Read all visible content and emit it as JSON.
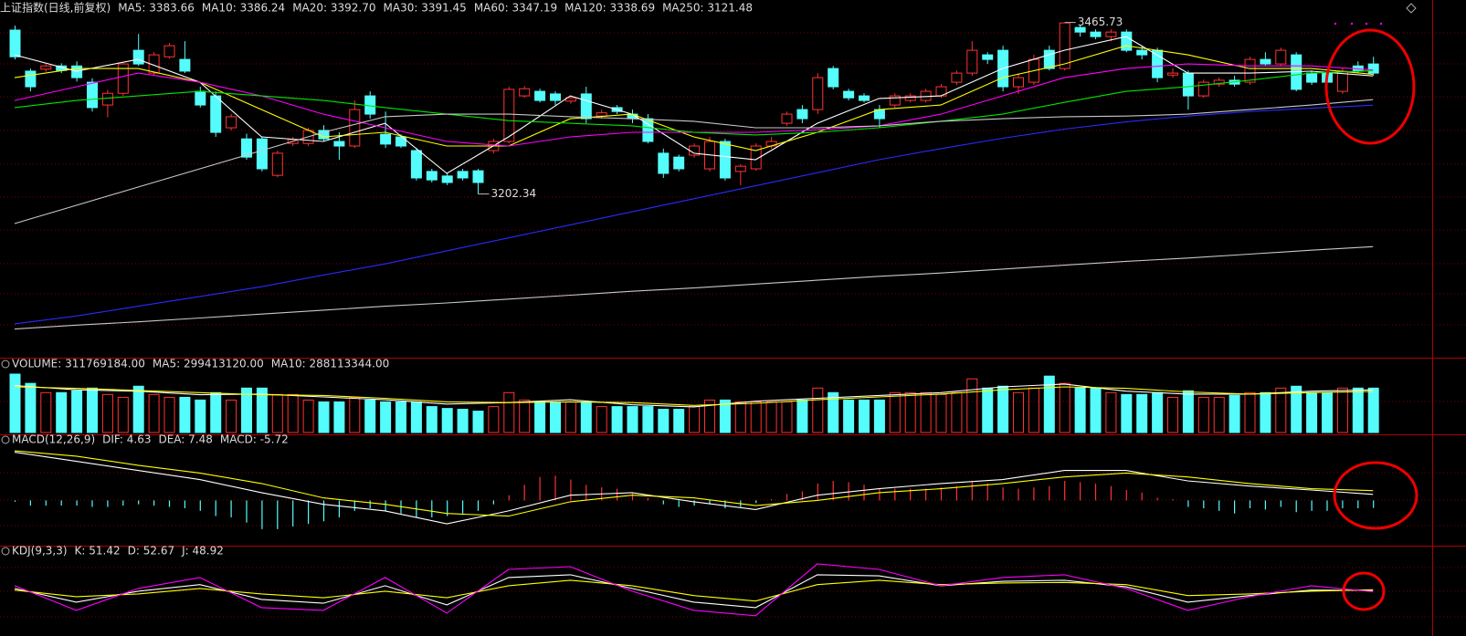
{
  "chart_data": [
    {
      "type": "candlestick",
      "title": "上证指数(日线,前复权)",
      "up_color": "#ff3232",
      "down_color": "#54fcfc",
      "ylim": [
        2951,
        3475
      ],
      "open": [
        3454,
        3391,
        3394,
        3399,
        3399,
        3374,
        3339,
        3357,
        3423,
        3388,
        3413,
        3409,
        3360,
        3353,
        3304,
        3287,
        3287,
        3231,
        3280,
        3280,
        3300,
        3283,
        3276,
        3353,
        3294,
        3290,
        3269,
        3237,
        3230,
        3237,
        3238,
        3269,
        3283,
        3353,
        3360,
        3356,
        3345,
        3356,
        3322,
        3335,
        3325,
        3318,
        3265,
        3259,
        3262,
        3241,
        3283,
        3237,
        3241,
        3276,
        3311,
        3332,
        3332,
        3395,
        3360,
        3353,
        3332,
        3339,
        3346,
        3346,
        3353,
        3374,
        3388,
        3416,
        3423,
        3367,
        3374,
        3423,
        3395,
        3458,
        3451,
        3444,
        3451,
        3423,
        3423,
        3385,
        3388,
        3353,
        3371,
        3377,
        3374,
        3409,
        3402,
        3416,
        3388,
        3388,
        3360,
        3399,
        3402
      ],
      "close": [
        3413,
        3367,
        3399,
        3392,
        3381,
        3335,
        3357,
        3402,
        3402,
        3416,
        3430,
        3391,
        3339,
        3297,
        3321,
        3259,
        3241,
        3265,
        3286,
        3300,
        3287,
        3276,
        3332,
        3325,
        3279,
        3276,
        3227,
        3224,
        3220,
        3227,
        3220,
        3283,
        3363,
        3364,
        3346,
        3346,
        3350,
        3318,
        3327,
        3329,
        3318,
        3283,
        3234,
        3241,
        3276,
        3283,
        3227,
        3245,
        3276,
        3283,
        3325,
        3318,
        3381,
        3367,
        3350,
        3346,
        3318,
        3353,
        3353,
        3360,
        3367,
        3388,
        3423,
        3409,
        3367,
        3381,
        3409,
        3395,
        3465,
        3451,
        3444,
        3451,
        3423,
        3416,
        3381,
        3388,
        3353,
        3374,
        3377,
        3371,
        3409,
        3402,
        3423,
        3363,
        3374,
        3374,
        3391,
        3391,
        3388
      ],
      "high": [
        3461,
        3395,
        3402,
        3403,
        3406,
        3380,
        3362,
        3405,
        3448,
        3420,
        3434,
        3437,
        3367,
        3360,
        3325,
        3295,
        3291,
        3269,
        3290,
        3304,
        3308,
        3297,
        3346,
        3360,
        3329,
        3294,
        3273,
        3241,
        3234,
        3241,
        3241,
        3287,
        3367,
        3368,
        3364,
        3360,
        3353,
        3367,
        3332,
        3339,
        3332,
        3325,
        3272,
        3263,
        3280,
        3290,
        3287,
        3248,
        3280,
        3290,
        3329,
        3339,
        3388,
        3399,
        3364,
        3357,
        3339,
        3357,
        3357,
        3364,
        3371,
        3392,
        3437,
        3420,
        3430,
        3388,
        3416,
        3430,
        3465.73,
        3462,
        3455,
        3455,
        3455,
        3430,
        3427,
        3395,
        3392,
        3378,
        3381,
        3384,
        3413,
        3420,
        3427,
        3420,
        3392,
        3395,
        3395,
        3406,
        3413
      ],
      "low": [
        3409,
        3360,
        3390,
        3388,
        3375,
        3329,
        3320,
        3353,
        3399,
        3385,
        3410,
        3388,
        3335,
        3290,
        3300,
        3255,
        3237,
        3228,
        3276,
        3276,
        3283,
        3255,
        3273,
        3318,
        3273,
        3273,
        3223,
        3220,
        3216,
        3223,
        3202.34,
        3265,
        3280,
        3350,
        3343,
        3339,
        3341,
        3311,
        3318,
        3325,
        3311,
        3280,
        3227,
        3237,
        3258,
        3237,
        3223,
        3216,
        3238,
        3272,
        3307,
        3311,
        3325,
        3363,
        3346,
        3343,
        3304,
        3335,
        3343,
        3343,
        3350,
        3370,
        3384,
        3402,
        3360,
        3356,
        3370,
        3392,
        3392,
        3444,
        3440,
        3437,
        3420,
        3409,
        3374,
        3381,
        3332,
        3350,
        3367,
        3367,
        3370,
        3399,
        3399,
        3360,
        3370,
        3367,
        3356,
        3388,
        3384
      ],
      "line_x": [
        0,
        4,
        8,
        12,
        16,
        20,
        24,
        28,
        32,
        36,
        40,
        44,
        48,
        52,
        56,
        60,
        64,
        68,
        72,
        76,
        80,
        84,
        88
      ],
      "series": [
        {
          "name": "MA5: 3383.66",
          "color": "#ffffff",
          "values": [
            3416,
            3391,
            3409,
            3374,
            3290,
            3283,
            3311,
            3234,
            3290,
            3353,
            3325,
            3265,
            3255,
            3311,
            3349,
            3353,
            3395,
            3423,
            3444,
            3388,
            3388,
            3391,
            3383.66
          ]
        },
        {
          "name": "MA10: 3386.24",
          "color": "#ffff00",
          "values": [
            3381,
            3395,
            3395,
            3374,
            3332,
            3290,
            3297,
            3276,
            3276,
            3318,
            3325,
            3290,
            3269,
            3297,
            3332,
            3339,
            3381,
            3402,
            3430,
            3416,
            3395,
            3395,
            3386.24
          ]
        },
        {
          "name": "MA20: 3392.70",
          "color": "#ff00ff",
          "values": [
            3346,
            3367,
            3388,
            3374,
            3353,
            3325,
            3304,
            3283,
            3276,
            3290,
            3297,
            3297,
            3297,
            3301,
            3307,
            3325,
            3353,
            3381,
            3395,
            3402,
            3399,
            3399,
            3392.7
          ]
        },
        {
          "name": "MA30: 3391.45",
          "color": "#00e600",
          "values": [
            3335,
            3346,
            3353,
            3360,
            3353,
            3346,
            3335,
            3325,
            3315,
            3311,
            3307,
            3297,
            3293,
            3297,
            3304,
            3314,
            3325,
            3343,
            3360,
            3367,
            3377,
            3388,
            3391.45
          ]
        },
        {
          "name": "MA60: 3347.19",
          "color": "#c8c8c8",
          "values": [
            3157,
            3185,
            3213,
            3241,
            3269,
            3297,
            3321,
            3325,
            3325,
            3321,
            3318,
            3314,
            3304,
            3304,
            3307,
            3314,
            3318,
            3321,
            3322,
            3325,
            3332,
            3339,
            3347.19
          ]
        },
        {
          "name": "MA120: 3338.69",
          "color": "#2a2aff",
          "values": [
            3003,
            3015,
            3030,
            3045,
            3060,
            3078,
            3095,
            3115,
            3135,
            3155,
            3175,
            3195,
            3215,
            3235,
            3255,
            3272,
            3288,
            3302,
            3313,
            3322,
            3329,
            3334,
            3338.69
          ]
        },
        {
          "name": "MA250: 3121.48",
          "color": "#c8c8c8",
          "values": [
            2995,
            3001,
            3006,
            3012,
            3018,
            3024,
            3030,
            3035,
            3041,
            3047,
            3053,
            3058,
            3064,
            3070,
            3076,
            3081,
            3087,
            3093,
            3099,
            3104,
            3110,
            3116,
            3121.48
          ]
        }
      ],
      "annotations": [
        {
          "text": "3465.73",
          "x": 68,
          "at": "high"
        },
        {
          "text": "3202.34",
          "x": 30,
          "at": "low"
        }
      ]
    },
    {
      "type": "volume",
      "title": "VOLUME: 311769184.00",
      "ylim": [
        0,
        442000000
      ],
      "values": [
        410000000,
        345000000,
        280000000,
        280000000,
        293000000,
        312000000,
        267000000,
        247000000,
        325000000,
        267000000,
        247000000,
        247000000,
        228000000,
        280000000,
        228000000,
        312000000,
        312000000,
        267000000,
        267000000,
        228000000,
        215000000,
        215000000,
        247000000,
        228000000,
        215000000,
        215000000,
        215000000,
        182000000,
        169000000,
        163000000,
        150000000,
        182000000,
        280000000,
        228000000,
        215000000,
        215000000,
        215000000,
        215000000,
        182000000,
        182000000,
        182000000,
        182000000,
        163000000,
        163000000,
        182000000,
        228000000,
        228000000,
        215000000,
        215000000,
        215000000,
        215000000,
        228000000,
        312000000,
        280000000,
        228000000,
        228000000,
        228000000,
        280000000,
        280000000,
        280000000,
        267000000,
        280000000,
        377000000,
        312000000,
        325000000,
        280000000,
        312000000,
        396000000,
        345000000,
        312000000,
        312000000,
        280000000,
        267000000,
        267000000,
        280000000,
        247000000,
        293000000,
        247000000,
        247000000,
        260000000,
        280000000,
        280000000,
        312000000,
        325000000,
        280000000,
        280000000,
        312000000,
        312000000,
        311769184
      ],
      "line_x": [
        0,
        4,
        8,
        12,
        16,
        20,
        24,
        28,
        32,
        36,
        40,
        44,
        48,
        52,
        56,
        60,
        64,
        68,
        72,
        76,
        80,
        84,
        88
      ],
      "series": [
        {
          "name": "MA5: 299413120.00",
          "color": "#ffffff",
          "values": [
            330000000,
            300000000,
            290000000,
            265000000,
            270000000,
            250000000,
            230000000,
            200000000,
            210000000,
            230000000,
            195000000,
            180000000,
            220000000,
            240000000,
            260000000,
            280000000,
            320000000,
            340000000,
            290000000,
            270000000,
            270000000,
            290000000,
            299413120
          ]
        },
        {
          "name": "MA10: 288113344.00",
          "color": "#ffff00",
          "values": [
            320000000,
            310000000,
            295000000,
            280000000,
            265000000,
            260000000,
            240000000,
            215000000,
            210000000,
            215000000,
            210000000,
            190000000,
            205000000,
            230000000,
            250000000,
            270000000,
            300000000,
            320000000,
            310000000,
            285000000,
            270000000,
            280000000,
            288113344
          ]
        }
      ]
    },
    {
      "type": "macd",
      "title": "MACD(12,26,9)",
      "ylim": [
        -34,
        43
      ],
      "up_color": "#ff3232",
      "down_color": "#54fcfc",
      "line_x": [
        0,
        4,
        8,
        12,
        16,
        20,
        24,
        28,
        32,
        36,
        40,
        44,
        48,
        52,
        56,
        60,
        64,
        68,
        72,
        76,
        80,
        84,
        88
      ],
      "series": [
        {
          "name": "DIF: 4.63",
          "color": "#ffffff",
          "values": [
            37,
            30,
            23,
            16,
            6,
            -3,
            -8,
            -18,
            -8,
            4,
            6,
            -1,
            -7,
            4,
            9,
            13,
            16,
            23,
            23,
            15,
            11,
            8,
            4.63
          ]
        },
        {
          "name": "DEA: 7.48",
          "color": "#ffff00",
          "values": [
            38,
            34,
            27,
            21,
            13,
            2,
            -3,
            -10,
            -12,
            -1,
            4,
            2,
            -4,
            0,
            6,
            9,
            13,
            18,
            21,
            18,
            13,
            9,
            7.48
          ]
        }
      ],
      "bars": {
        "name": "MACD: -5.72",
        "color": "#ff00ff",
        "values": [
          -1,
          -4,
          -4,
          -4,
          -4,
          -5,
          -5,
          -4,
          -3,
          -4,
          -5,
          -6,
          -8,
          -12,
          -13,
          -17,
          -22,
          -22,
          -20,
          -18,
          -16,
          -13,
          -8,
          -6,
          -8,
          -10,
          -13,
          -13,
          -12,
          -10,
          -8,
          -3,
          4,
          12,
          18,
          19,
          16,
          12,
          10,
          9,
          6,
          2,
          -3,
          -5,
          -4,
          -3,
          -6,
          -5,
          -2,
          1,
          5,
          7,
          13,
          15,
          14,
          12,
          9,
          9,
          9,
          9,
          10,
          11,
          15,
          13,
          10,
          9,
          10,
          11,
          15,
          14,
          13,
          11,
          8,
          6,
          2,
          1,
          -5,
          -6,
          -8,
          -10,
          -6,
          -7,
          -5,
          -9,
          -8,
          -8,
          -6,
          -6,
          -5.72
        ]
      }
    },
    {
      "type": "kdj",
      "title": "KDJ(9,3,3)",
      "ylim": [
        -32,
        130
      ],
      "line_x": [
        0,
        4,
        8,
        12,
        16,
        20,
        24,
        28,
        32,
        36,
        40,
        44,
        48,
        52,
        56,
        60,
        64,
        68,
        72,
        76,
        80,
        84,
        88
      ],
      "series": [
        {
          "name": "K: 51.42",
          "color": "#ffffff",
          "values": [
            55,
            30,
            50,
            62,
            35,
            28,
            60,
            25,
            75,
            80,
            55,
            30,
            20,
            80,
            78,
            60,
            68,
            70,
            58,
            30,
            42,
            52,
            51.42
          ]
        },
        {
          "name": "D: 52.67",
          "color": "#ffff00",
          "values": [
            52,
            40,
            45,
            55,
            45,
            38,
            50,
            38,
            60,
            70,
            60,
            42,
            32,
            62,
            70,
            62,
            65,
            66,
            62,
            42,
            45,
            50,
            52.67
          ]
        },
        {
          "name": "J: 48.92",
          "color": "#ff00ff",
          "values": [
            60,
            15,
            55,
            75,
            20,
            15,
            75,
            10,
            90,
            95,
            50,
            15,
            5,
            100,
            90,
            60,
            75,
            80,
            55,
            15,
            40,
            60,
            48.92
          ]
        }
      ]
    }
  ]
}
